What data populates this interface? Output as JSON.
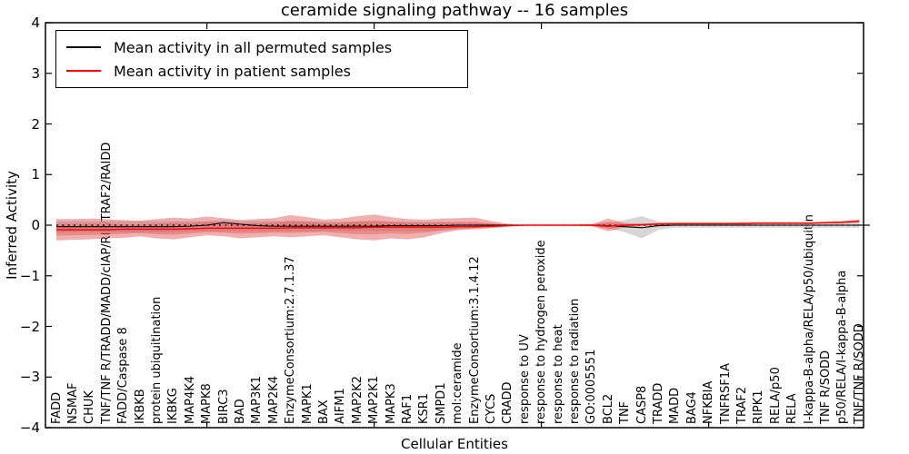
{
  "chart_data": {
    "type": "line",
    "title": "ceramide signaling pathway -- 16 samples",
    "xlabel": "Cellular Entities",
    "ylabel": "Inferred Activity",
    "ylim": [
      -4,
      4
    ],
    "ytick_labels": [
      "4",
      "3",
      "2",
      "1",
      "0",
      "−1",
      "−2",
      "−3",
      "−4"
    ],
    "ytick_values": [
      4,
      3,
      2,
      1,
      0,
      -1,
      -2,
      -3,
      -4
    ],
    "x_major_tick_indices": [
      9,
      19,
      29,
      39
    ],
    "grid": false,
    "legend_position": "upper-left",
    "categories": [
      "FADD",
      "NSMAF",
      "CHUK",
      "TNF/TNF R/TRADD/MADD/cIAP/RIP/TRAF2/RAIDD",
      "FADD/Caspase 8",
      "IKBKB",
      "protein ubiquitination",
      "IKBKG",
      "MAP4K4",
      "MAPK8",
      "BIRC3",
      "BAD",
      "MAP3K1",
      "MAP2K4",
      "EnzymeConsortium:2.7.1.37",
      "MAPK1",
      "BAX",
      "AIFM1",
      "MAP2K2",
      "MAP2K1",
      "MAPK3",
      "RAF1",
      "KSR1",
      "SMPD1",
      "mol:ceramide",
      "EnzymeConsortium:3.1.4.12",
      "CYCS",
      "CRADD",
      "response to UV",
      "response to hydrogen peroxide",
      "response to heat",
      "response to radiation",
      "GO:0005551",
      "BCL2",
      "TNF",
      "CASP8",
      "TRADD",
      "MADD",
      "BAG4",
      "NFKBIA",
      "TNFRSF1A",
      "TRAF2",
      "RIPK1",
      "RELA/p50",
      "RELA",
      "I-kappa-B-alpha/RELA/p50/ubiquitin",
      "TNF R/SODD",
      "p50/RELA/I-kappa-B-alpha",
      "TNF/TNF R/SODD"
    ],
    "series": [
      {
        "name": "Mean activity in all permuted samples",
        "color": "#000000",
        "values": [
          -0.03,
          -0.03,
          -0.03,
          -0.03,
          -0.03,
          -0.03,
          -0.03,
          -0.03,
          -0.02,
          0.0,
          0.05,
          0.02,
          -0.01,
          -0.02,
          -0.02,
          -0.02,
          -0.02,
          -0.02,
          -0.02,
          -0.02,
          -0.01,
          -0.01,
          -0.01,
          -0.01,
          0.0,
          0.0,
          0.0,
          0.0,
          0.0,
          0.0,
          0.0,
          0.0,
          0.0,
          -0.01,
          -0.03,
          -0.05,
          -0.01,
          0.0,
          0.0,
          0.0,
          0.0,
          0.0,
          0.0,
          0.0,
          0.0,
          0.0,
          0.0,
          0.0,
          0.0
        ]
      },
      {
        "name": "Mean activity in patient samples",
        "color": "#ff0000",
        "values": [
          -0.09,
          -0.09,
          -0.09,
          -0.09,
          -0.08,
          -0.08,
          -0.08,
          -0.08,
          -0.07,
          -0.06,
          -0.06,
          -0.06,
          -0.06,
          -0.06,
          -0.05,
          -0.05,
          -0.05,
          -0.05,
          -0.05,
          -0.04,
          -0.04,
          -0.04,
          -0.04,
          -0.04,
          -0.03,
          -0.03,
          -0.02,
          -0.01,
          0.0,
          0.0,
          0.0,
          0.0,
          0.0,
          -0.02,
          0.0,
          0.01,
          0.02,
          0.03,
          0.03,
          0.03,
          0.03,
          0.03,
          0.04,
          0.04,
          0.04,
          0.04,
          0.05,
          0.06,
          0.08
        ]
      }
    ],
    "bands": [
      {
        "name": "permuted-samples-std-band",
        "color": "#c8c8c8",
        "alpha": 0.75,
        "hi": [
          0.08,
          0.08,
          0.08,
          0.08,
          0.08,
          0.08,
          0.08,
          0.08,
          0.08,
          0.08,
          0.1,
          0.08,
          0.08,
          0.08,
          0.08,
          0.08,
          0.07,
          0.07,
          0.07,
          0.07,
          0.07,
          0.07,
          0.07,
          0.07,
          0.05,
          0.04,
          0.03,
          0.02,
          0.01,
          0.01,
          0.01,
          0.01,
          0.02,
          0.05,
          0.1,
          0.18,
          0.07,
          0.05,
          0.05,
          0.05,
          0.05,
          0.05,
          0.05,
          0.05,
          0.05,
          0.05,
          0.05,
          0.05,
          0.07
        ],
        "lo": [
          -0.14,
          -0.14,
          -0.14,
          -0.14,
          -0.14,
          -0.14,
          -0.14,
          -0.14,
          -0.12,
          -0.12,
          -0.12,
          -0.12,
          -0.12,
          -0.12,
          -0.12,
          -0.12,
          -0.11,
          -0.11,
          -0.11,
          -0.11,
          -0.11,
          -0.11,
          -0.11,
          -0.11,
          -0.08,
          -0.06,
          -0.05,
          -0.03,
          -0.01,
          -0.01,
          -0.01,
          -0.01,
          -0.02,
          -0.06,
          -0.14,
          -0.26,
          -0.09,
          -0.05,
          -0.05,
          -0.05,
          -0.05,
          -0.05,
          -0.05,
          -0.05,
          -0.05,
          -0.05,
          -0.05,
          -0.05,
          -0.05
        ]
      },
      {
        "name": "patient-samples-std-band",
        "color": "#e05050",
        "alpha": 0.45,
        "hi": [
          0.12,
          0.12,
          0.13,
          0.12,
          0.1,
          0.09,
          0.12,
          0.15,
          0.13,
          0.17,
          0.14,
          0.1,
          0.12,
          0.14,
          0.2,
          0.16,
          0.11,
          0.13,
          0.18,
          0.21,
          0.16,
          0.12,
          0.11,
          0.13,
          0.14,
          0.15,
          0.08,
          0.03,
          0.01,
          0.01,
          0.01,
          0.01,
          0.02,
          0.13,
          0.04,
          0.03,
          0.05,
          0.05,
          0.05,
          0.05,
          0.05,
          0.06,
          0.06,
          0.06,
          0.06,
          0.06,
          0.07,
          0.08,
          0.11
        ],
        "lo": [
          -0.3,
          -0.29,
          -0.28,
          -0.26,
          -0.25,
          -0.22,
          -0.26,
          -0.28,
          -0.24,
          -0.2,
          -0.22,
          -0.26,
          -0.24,
          -0.22,
          -0.24,
          -0.22,
          -0.2,
          -0.24,
          -0.28,
          -0.3,
          -0.26,
          -0.28,
          -0.24,
          -0.16,
          -0.1,
          -0.08,
          -0.06,
          -0.03,
          -0.01,
          -0.01,
          -0.01,
          -0.01,
          -0.02,
          -0.12,
          -0.04,
          -0.02,
          0.0,
          0.01,
          0.01,
          0.01,
          0.01,
          0.01,
          0.02,
          0.02,
          0.02,
          0.02,
          0.03,
          0.03,
          0.05
        ]
      }
    ],
    "zero_line": {
      "value": 0,
      "style": "dotted",
      "color": "#000000"
    }
  }
}
